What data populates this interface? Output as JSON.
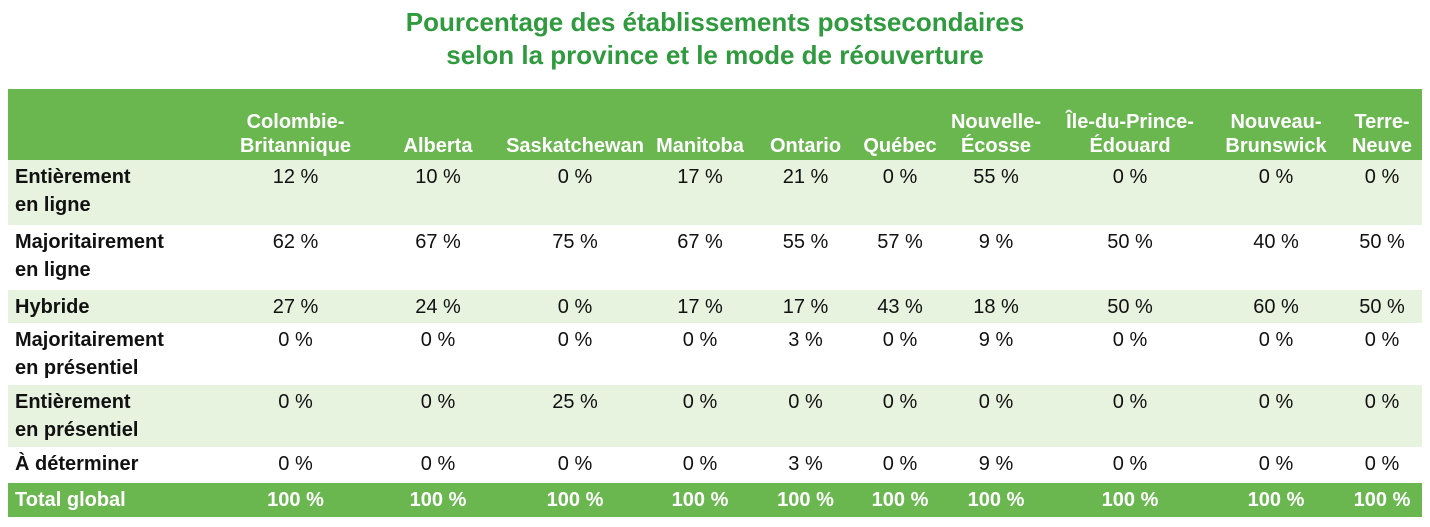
{
  "title_lines": [
    "Pourcentage des établissements postsecondaires",
    "selon la province et le mode de réouverture"
  ],
  "chart_data": {
    "type": "table",
    "columns": [
      [
        "Colombie-",
        "Britannique"
      ],
      [
        "Alberta"
      ],
      [
        "Saskatchewan"
      ],
      [
        "Manitoba"
      ],
      [
        "Ontario"
      ],
      [
        "Québec"
      ],
      [
        "Nouvelle-",
        "Écosse"
      ],
      [
        "Île-du-Prince-",
        "Édouard"
      ],
      [
        "Nouveau-",
        "Brunswick"
      ],
      [
        "Terre-",
        "Neuve"
      ]
    ],
    "rows": [
      {
        "label": [
          "Entièrement",
          "en ligne"
        ],
        "values": [
          "12 %",
          "10 %",
          "0 %",
          "17 %",
          "21 %",
          "0 %",
          "55 %",
          "0 %",
          "0 %",
          "0 %"
        ]
      },
      {
        "label": [
          "Majoritairement",
          "en ligne"
        ],
        "values": [
          "62 %",
          "67 %",
          "75 %",
          "67 %",
          "55 %",
          "57 %",
          "9 %",
          "50 %",
          "40 %",
          "50 %"
        ]
      },
      {
        "label": [
          "Hybride"
        ],
        "values": [
          "27 %",
          "24 %",
          "0 %",
          "17 %",
          "17 %",
          "43 %",
          "18 %",
          "50 %",
          "60 %",
          "50 %"
        ]
      },
      {
        "label": [
          "Majoritairement",
          "en présentiel"
        ],
        "values": [
          "0 %",
          "0 %",
          "0 %",
          "0 %",
          "3 %",
          "0 %",
          "9 %",
          "0 %",
          "0 %",
          "0 %"
        ]
      },
      {
        "label": [
          "Entièrement",
          "en présentiel"
        ],
        "values": [
          "0 %",
          "0 %",
          "25 %",
          "0 %",
          "0 %",
          "0 %",
          "0 %",
          "0 %",
          "0 %",
          "0 %"
        ]
      },
      {
        "label": [
          "À déterminer"
        ],
        "values": [
          "0 %",
          "0 %",
          "0 %",
          "0 %",
          "3 %",
          "0 %",
          "9 %",
          "0 %",
          "0 %",
          "0 %"
        ]
      }
    ],
    "total": {
      "label": [
        "Total global"
      ],
      "values": [
        "100 %",
        "100 %",
        "100 %",
        "100 %",
        "100 %",
        "100 %",
        "100 %",
        "100 %",
        "100 %",
        "100 %"
      ]
    },
    "colors": {
      "title": "#2f9a3e",
      "header": "#6ab750",
      "band": "#e7f2df"
    }
  }
}
